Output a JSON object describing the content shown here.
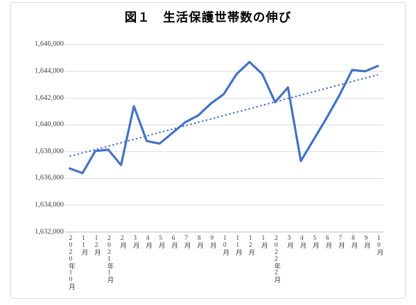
{
  "chart_data": {
    "type": "line",
    "title": "図１　生活保護世帯数の伸び",
    "xlabel": "",
    "ylabel": "",
    "legend_position": "none",
    "grid": true,
    "categories": [
      "2020年10月",
      "11月",
      "12月",
      "2021年1月",
      "2月",
      "3月",
      "4月",
      "5月",
      "6月",
      "7月",
      "8月",
      "9月",
      "10月",
      "11月",
      "12月",
      "1月",
      "2022年2月",
      "3月",
      "4月",
      "5月",
      "6月",
      "7月",
      "8月",
      "9月",
      "10月"
    ],
    "series": [
      {
        "name": "生活保護世帯数",
        "values": [
          1636750,
          1636400,
          1638050,
          1638150,
          1637000,
          1641400,
          1638800,
          1638600,
          1639400,
          1640200,
          1640700,
          1641600,
          1642300,
          1643800,
          1644700,
          1643800,
          1641700,
          1642800,
          1637300,
          1638900,
          1640500,
          1642200,
          1644100,
          1644000,
          1644400
        ]
      }
    ],
    "trendline": {
      "type": "linear",
      "style": "dotted",
      "start_value": 1637650,
      "end_value": 1643750
    },
    "ylim": [
      1632000,
      1646000
    ],
    "ytick_step": 2000,
    "yticks": [
      {
        "value": 1646000,
        "label": "1,646,000"
      },
      {
        "value": 1644000,
        "label": "1,644,000"
      },
      {
        "value": 1642000,
        "label": "1,642,000"
      },
      {
        "value": 1640000,
        "label": "1,640,000"
      },
      {
        "value": 1638000,
        "label": "1,638,000"
      },
      {
        "value": 1636000,
        "label": "1,636,000"
      },
      {
        "value": 1634000,
        "label": "1,634,000"
      },
      {
        "value": 1632000,
        "label": "1,632,000"
      }
    ],
    "colors": {
      "line": "#4472C4",
      "trendline": "#4472C4",
      "gridline": "#D9D9D9",
      "axis_line": "#BFBFBF",
      "frame_border": "#D9D9D9",
      "tick_text": "#404040",
      "title_text": "#000000"
    }
  }
}
